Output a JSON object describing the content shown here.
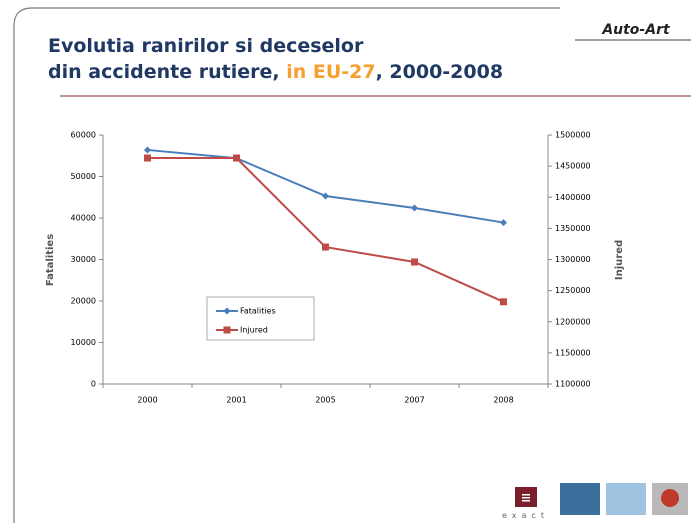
{
  "slide": {
    "title_line1": "Evolutia ranirilor si deceselor",
    "title_line2": [
      "din accidente rutiere, ",
      "in EU-27",
      ", 2000-2008"
    ],
    "logo": "Auto-Art",
    "footer_brand": "exact"
  },
  "chart_data": {
    "type": "line",
    "categories": [
      "2000",
      "2001",
      "2005",
      "2007",
      "2008"
    ],
    "series": [
      {
        "name": "Fatalities",
        "color": "#4a7ebb",
        "marker": "diamond",
        "values": [
          56400,
          54400,
          45300,
          42400,
          38900
        ]
      },
      {
        "name": "Injured",
        "color": "#be4b48",
        "marker": "square",
        "axis": "y2",
        "values": [
          1463000,
          1463000,
          1320000,
          1296000,
          1232000
        ]
      }
    ],
    "ylim": [
      0,
      60000
    ],
    "yticks": [
      0,
      10000,
      20000,
      30000,
      40000,
      50000,
      60000
    ],
    "y2lim": [
      1100000,
      1500000
    ],
    "y2ticks": [
      1100000,
      1150000,
      1200000,
      1250000,
      1300000,
      1350000,
      1400000,
      1450000,
      1500000
    ],
    "y_label": "Fatalities",
    "y2_label": "Injured",
    "grid": false
  }
}
